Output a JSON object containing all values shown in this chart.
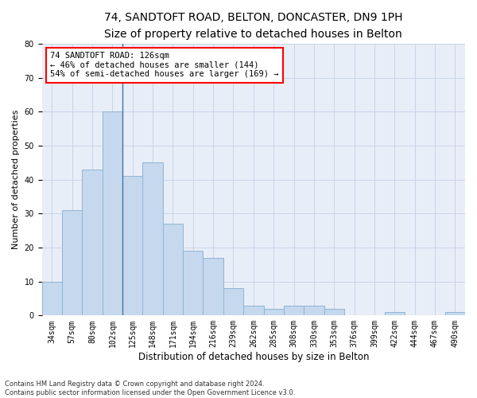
{
  "title1": "74, SANDTOFT ROAD, BELTON, DONCASTER, DN9 1PH",
  "title2": "Size of property relative to detached houses in Belton",
  "xlabel": "Distribution of detached houses by size in Belton",
  "ylabel": "Number of detached properties",
  "bar_values": [
    10,
    31,
    43,
    60,
    41,
    45,
    27,
    19,
    17,
    8,
    3,
    2,
    3,
    3,
    2,
    0,
    0,
    1,
    0,
    0,
    1
  ],
  "bar_labels": [
    "34sqm",
    "57sqm",
    "80sqm",
    "102sqm",
    "125sqm",
    "148sqm",
    "171sqm",
    "194sqm",
    "216sqm",
    "239sqm",
    "262sqm",
    "285sqm",
    "308sqm",
    "330sqm",
    "353sqm",
    "376sqm",
    "399sqm",
    "422sqm",
    "444sqm",
    "467sqm",
    "490sqm"
  ],
  "bar_color": "#c5d8ed",
  "bar_edge_color": "#8fb4d4",
  "vline_x": 4.0,
  "vline_color": "#4472a8",
  "annotation_text": "74 SANDTOFT ROAD: 126sqm\n← 46% of detached houses are smaller (144)\n54% of semi-detached houses are larger (169) →",
  "annotation_box_color": "white",
  "annotation_box_edge": "red",
  "ylim": [
    0,
    80
  ],
  "yticks": [
    0,
    10,
    20,
    30,
    40,
    50,
    60,
    70,
    80
  ],
  "grid_color": "#c8d4e8",
  "background_color": "#e8eef8",
  "footnote": "Contains HM Land Registry data © Crown copyright and database right 2024.\nContains public sector information licensed under the Open Government Licence v3.0.",
  "title1_fontsize": 10,
  "title2_fontsize": 9,
  "xlabel_fontsize": 8.5,
  "ylabel_fontsize": 8,
  "tick_fontsize": 7,
  "annotation_fontsize": 7.5
}
